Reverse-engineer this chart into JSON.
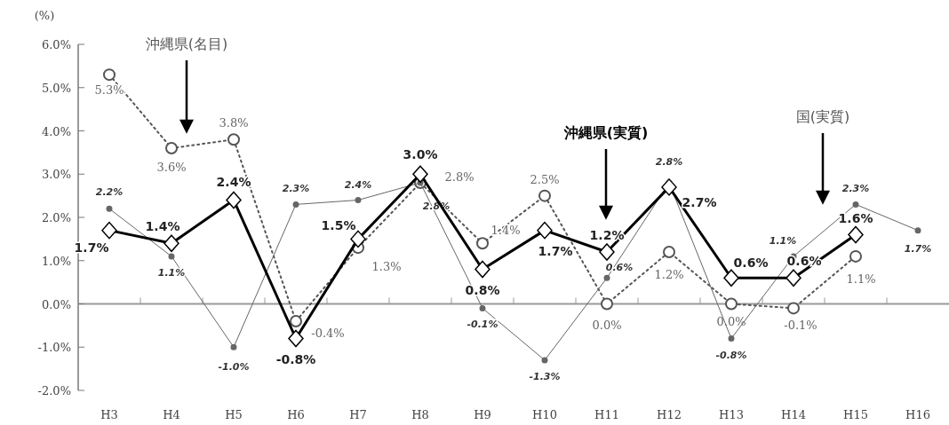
{
  "chart_data": {
    "type": "line",
    "ylabel": "(%)",
    "categories": [
      "H3",
      "H4",
      "H5",
      "H6",
      "H7",
      "H8",
      "H9",
      "H10",
      "H11",
      "H12",
      "H13",
      "H14",
      "H15",
      "H16"
    ],
    "ylim": [
      -2,
      6
    ],
    "yticks": [
      {
        "value": 6,
        "label": "6.0%"
      },
      {
        "value": 5,
        "label": "5.0%"
      },
      {
        "value": 4,
        "label": "4.0%"
      },
      {
        "value": 3,
        "label": "3.0%"
      },
      {
        "value": 2,
        "label": "2.0%"
      },
      {
        "value": 1,
        "label": "1.0%"
      },
      {
        "value": 0,
        "label": "0.0%"
      },
      {
        "value": -1,
        "label": "-1.0%"
      },
      {
        "value": -2,
        "label": "-2.0%"
      }
    ],
    "series": [
      {
        "color": "#555555",
        "line_style": "dotted",
        "marker": "circle",
        "values": [
          5.3,
          3.6,
          3.8,
          -0.4,
          1.3,
          2.8,
          1.4,
          2.5,
          0.0,
          1.2,
          0.0,
          -0.1,
          1.1,
          null
        ],
        "value_labels": [
          "5.3%",
          "3.6%",
          "3.8%",
          "-0.4%",
          "1.3%",
          "2.8%",
          "1.4%",
          "2.5%",
          "0.0%",
          "1.2%",
          "0.0%",
          "-0.1%",
          "1.1%",
          null
        ]
      },
      {
        "color": "#666666",
        "line_style": "solid",
        "marker": "circle",
        "values": [
          2.2,
          1.1,
          -1.0,
          2.3,
          2.4,
          2.8,
          -0.1,
          -1.3,
          0.6,
          2.8,
          -0.8,
          1.1,
          2.3,
          1.7
        ],
        "value_labels": [
          "2.2%",
          "1.1%",
          "-1.0%",
          "2.3%",
          "2.4%",
          "2.8%",
          "-0.1%",
          "-1.3%",
          "0.6%",
          "2.8%",
          "-0.8%",
          "1.1%",
          "2.3%",
          "1.7%"
        ]
      },
      {
        "color": "#000000",
        "line_style": "solid",
        "marker": "diamond",
        "values": [
          1.7,
          1.4,
          2.4,
          -0.8,
          1.5,
          3.0,
          0.8,
          1.7,
          1.2,
          2.7,
          0.6,
          0.6,
          1.6,
          null
        ],
        "value_labels": [
          "1.7%",
          "1.4%",
          "2.4%",
          "-0.8%",
          "1.5%",
          "3.0%",
          "0.8%",
          "1.7%",
          "1.2%",
          "2.7%",
          "0.6%",
          "0.6%",
          "1.6%",
          null
        ]
      }
    ],
    "annotations": [
      "沖縄県(名目)",
      "沖縄県(実質)",
      "国(実質)"
    ]
  }
}
